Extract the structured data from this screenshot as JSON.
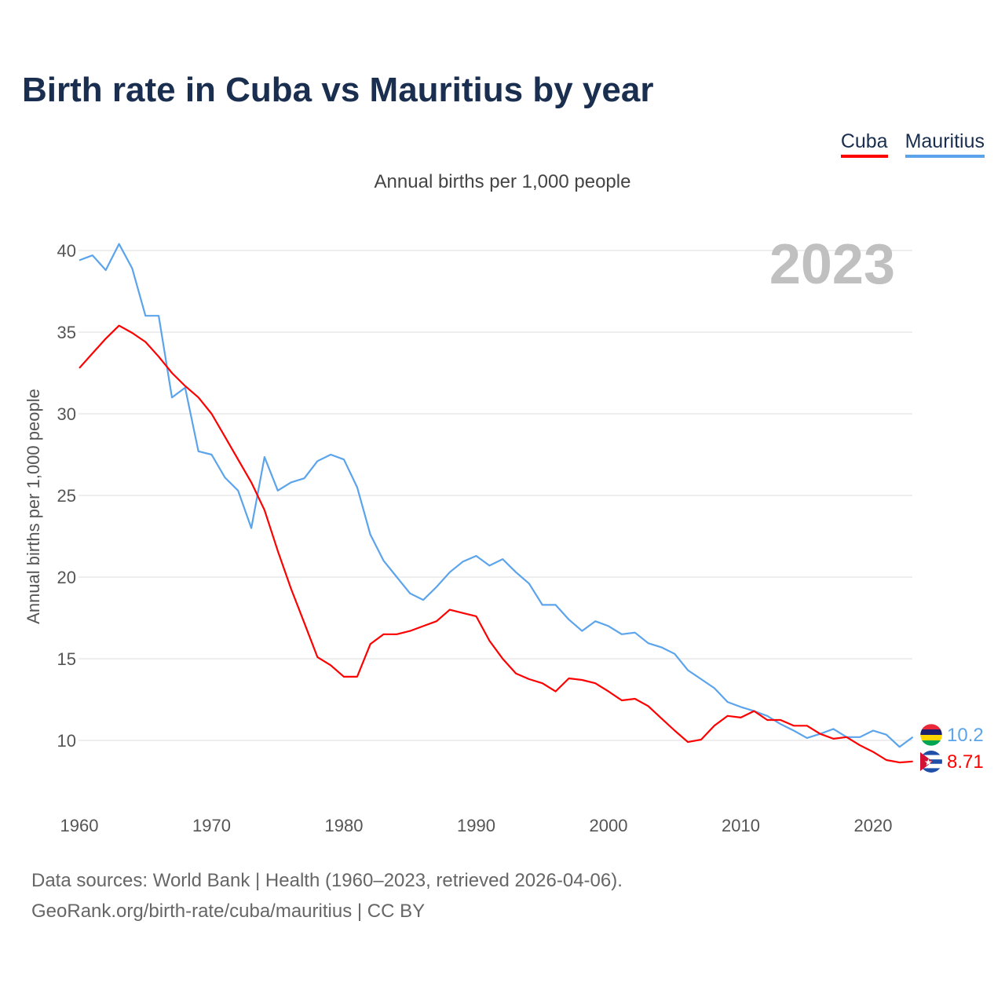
{
  "chart_data": {
    "type": "line",
    "title": "Birth rate in Cuba vs Mauritius by year",
    "subtitle": "Annual births per 1,000 people",
    "ylabel": "Annual births per 1,000 people",
    "xlabel": "",
    "year_label": "2023",
    "xlim": [
      1960,
      2023
    ],
    "ylim": [
      6.5,
      41
    ],
    "yticks": [
      10,
      15,
      20,
      25,
      30,
      35,
      40
    ],
    "xticks": [
      1960,
      1970,
      1980,
      1990,
      2000,
      2010,
      2020
    ],
    "grid": true,
    "legend_position": "top-right",
    "x_start": 1960,
    "series": [
      {
        "name": "Cuba",
        "color": "#ff0000",
        "end_label": "8.71",
        "values": [
          32.8,
          33.7,
          34.6,
          35.4,
          34.95,
          34.4,
          33.5,
          32.5,
          31.7,
          31.0,
          30.0,
          28.6,
          27.2,
          25.8,
          24.1,
          21.6,
          19.3,
          17.2,
          15.1,
          14.6,
          13.9,
          13.9,
          15.9,
          16.5,
          16.5,
          16.7,
          17.0,
          17.3,
          18.0,
          17.8,
          17.6,
          16.1,
          15.0,
          14.1,
          13.75,
          13.5,
          13.0,
          13.8,
          13.7,
          13.5,
          13.0,
          12.45,
          12.55,
          12.1,
          11.35,
          10.6,
          9.9,
          10.05,
          10.9,
          11.5,
          11.4,
          11.8,
          11.25,
          11.25,
          10.9,
          10.9,
          10.4,
          10.1,
          10.2,
          9.7,
          9.3,
          8.8,
          8.65,
          8.71
        ]
      },
      {
        "name": "Mauritius",
        "color": "#5ba4ec",
        "end_label": "10.2",
        "values": [
          39.4,
          39.7,
          38.8,
          40.4,
          38.9,
          36.0,
          36.0,
          31.0,
          31.6,
          27.7,
          27.5,
          26.1,
          25.3,
          23.0,
          27.35,
          25.3,
          25.8,
          26.05,
          27.1,
          27.5,
          27.2,
          25.5,
          22.6,
          21.0,
          20.0,
          19.0,
          18.6,
          19.4,
          20.3,
          20.95,
          21.3,
          20.7,
          21.1,
          20.3,
          19.6,
          18.3,
          18.3,
          17.4,
          16.7,
          17.3,
          17.0,
          16.5,
          16.6,
          15.95,
          15.7,
          15.3,
          14.3,
          13.75,
          13.2,
          12.35,
          12.05,
          11.8,
          11.5,
          11.0,
          10.6,
          10.15,
          10.4,
          10.7,
          10.2,
          10.2,
          10.6,
          10.35,
          9.6,
          10.2
        ]
      }
    ]
  },
  "footer": {
    "line1": "Data sources: World Bank | Health (1960–2023, retrieved 2026-04-06).",
    "line2": "GeoRank.org/birth-rate/cuba/mauritius | CC BY"
  }
}
